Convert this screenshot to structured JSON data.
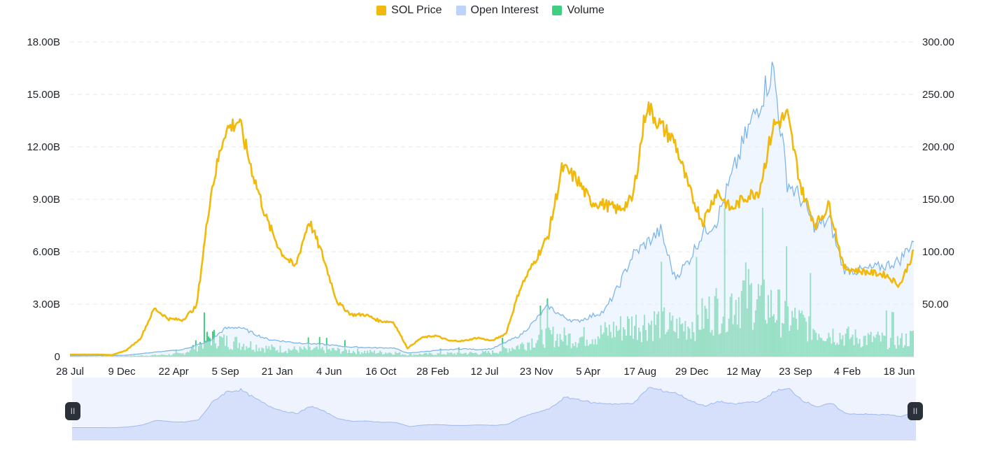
{
  "legend": [
    {
      "label": "SOL Price",
      "color": "#f0b90b"
    },
    {
      "label": "Open Interest",
      "color": "#bcd3fb"
    },
    {
      "label": "Volume",
      "color": "#3fcf82"
    }
  ],
  "chart_data": {
    "type": "line",
    "title": "",
    "x_tick_labels": [
      "28 Jul",
      "9 Dec",
      "22 Apr",
      "5 Sep",
      "21 Jan",
      "4 Jun",
      "16 Oct",
      "28 Feb",
      "12 Jul",
      "23 Nov",
      "5 Apr",
      "17 Aug",
      "29 Dec",
      "12 May",
      "23 Sep",
      "4 Feb",
      "18 Jun"
    ],
    "y_left": {
      "ticks": [
        "0",
        "3.00B",
        "6.00B",
        "9.00B",
        "12.00B",
        "15.00B",
        "18.00B"
      ],
      "range": [
        0,
        18000000000
      ]
    },
    "y_right": {
      "ticks": [
        "",
        "50.00",
        "100.00",
        "150.00",
        "200.00",
        "250.00",
        "300.00"
      ],
      "range": [
        0,
        300
      ]
    },
    "grid": "horizontal dashed",
    "legend_position": "top-center",
    "x_index_range": [
      0,
      30
    ],
    "series": [
      {
        "name": "SOL Price",
        "axis": "right",
        "color": "#f0b90b",
        "x": [
          0,
          1,
          1.5,
          2,
          2.5,
          3,
          3.5,
          4,
          4.5,
          5,
          5.5,
          6,
          6.5,
          7,
          7.5,
          8,
          8.5,
          9,
          9.5,
          10,
          10.5,
          11,
          11.5,
          12,
          12.5,
          13,
          13.5,
          14,
          14.5,
          15,
          15.5,
          16,
          16.5,
          17,
          17.5,
          18,
          18.5,
          19,
          19.5,
          20,
          20.5,
          21,
          21.5,
          22,
          22.5,
          23,
          23.5,
          24,
          24.5,
          25,
          25.5,
          26,
          26.5,
          27,
          27.5,
          28,
          28.5,
          29,
          29.5,
          30
        ],
        "values": [
          2,
          2,
          1.5,
          6,
          17,
          46,
          36,
          35,
          48,
          155,
          215,
          225,
          175,
          130,
          100,
          85,
          130,
          95,
          52,
          40,
          40,
          34,
          33,
          8,
          18,
          20,
          15,
          15,
          18,
          15,
          22,
          65,
          90,
          115,
          180,
          170,
          148,
          145,
          140,
          150,
          240,
          220,
          205,
          160,
          128,
          158,
          140,
          152,
          158,
          220,
          230,
          160,
          125,
          145,
          85,
          82,
          80,
          78,
          68,
          100
        ]
      },
      {
        "name": "Open Interest",
        "axis": "left",
        "color": "#7cb5ec",
        "x": [
          0,
          2,
          3,
          4,
          5,
          5.5,
          6,
          7,
          8,
          9,
          10,
          11,
          11.5,
          12,
          13,
          14,
          14.5,
          15,
          16,
          16.5,
          17,
          17.5,
          18,
          19,
          19.5,
          20,
          21,
          21.5,
          22,
          22.5,
          23,
          24,
          25,
          25.5,
          26,
          26.5,
          27,
          27.5,
          28,
          29,
          29.5,
          30
        ],
        "values": [
          0.05,
          0.08,
          0.25,
          0.4,
          0.9,
          1.6,
          1.7,
          1.0,
          0.8,
          0.7,
          0.55,
          0.5,
          0.5,
          0.2,
          0.35,
          0.45,
          0.4,
          0.45,
          1.2,
          2.0,
          2.9,
          2.3,
          2.0,
          2.6,
          4.0,
          5.8,
          7.2,
          4.5,
          5.5,
          7.1,
          7.8,
          12.5,
          16.5,
          10.0,
          9.0,
          7.4,
          7.8,
          5.0,
          4.9,
          5.2,
          5.5,
          6.7
        ]
      },
      {
        "name": "Volume",
        "axis": "left",
        "color": "#3fcf82",
        "x": [
          0,
          2,
          3,
          4,
          5,
          5.5,
          6,
          7,
          8,
          9,
          10,
          11,
          11.5,
          12,
          13,
          14,
          14.5,
          15,
          16,
          16.5,
          17,
          17.5,
          18,
          19,
          19.5,
          20,
          21,
          21.5,
          22,
          22.5,
          23,
          24,
          25,
          25.5,
          26,
          26.5,
          27,
          27.5,
          28,
          29,
          29.5,
          30
        ],
        "values": [
          0.02,
          0.05,
          0.1,
          0.2,
          1.4,
          1.1,
          1.0,
          0.6,
          0.5,
          0.5,
          0.4,
          0.3,
          0.3,
          0.15,
          0.2,
          0.25,
          0.25,
          0.3,
          0.8,
          1.2,
          1.5,
          1.4,
          1.3,
          1.7,
          2.0,
          2.3,
          2.5,
          2.0,
          2.3,
          2.8,
          3.5,
          4.5,
          3.5,
          2.8,
          2.4,
          2.0,
          1.7,
          1.5,
          1.3,
          1.2,
          1.1,
          1.4
        ]
      }
    ]
  },
  "navigator": {
    "left_handle_glyph": "II",
    "right_handle_glyph": "II"
  }
}
